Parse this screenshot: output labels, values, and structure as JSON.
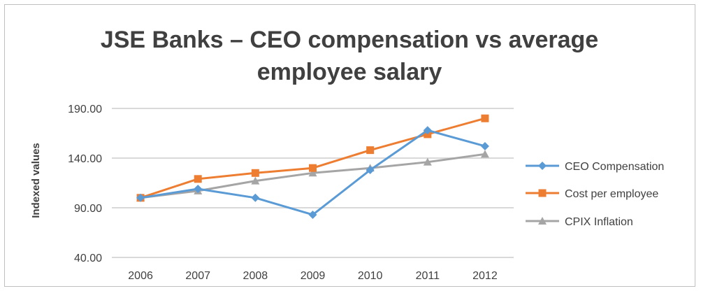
{
  "chart_data": {
    "type": "line",
    "title_line1": "JSE Banks – CEO compensation vs average",
    "title_line2": "employee salary",
    "xlabel": "",
    "ylabel": "Indexed values",
    "categories": [
      "2006",
      "2007",
      "2008",
      "2009",
      "2010",
      "2011",
      "2012"
    ],
    "yticks": [
      "190.00",
      "140.00",
      "90.00",
      "40.00"
    ],
    "ylim": [
      40,
      190
    ],
    "grid": true,
    "legend_position": "right",
    "series": [
      {
        "name": "CEO Compensation",
        "color": "#5b9bd5",
        "marker": "diamond",
        "values": [
          100,
          109,
          100,
          83,
          128,
          168,
          152
        ]
      },
      {
        "name": "Cost per employee",
        "color": "#ed7d31",
        "marker": "square",
        "values": [
          100,
          119,
          125,
          130,
          148,
          164,
          180
        ]
      },
      {
        "name": "CPIX Inflation",
        "color": "#a5a5a5",
        "marker": "triangle",
        "values": [
          100,
          107,
          117,
          125,
          130,
          136,
          144
        ]
      }
    ]
  }
}
